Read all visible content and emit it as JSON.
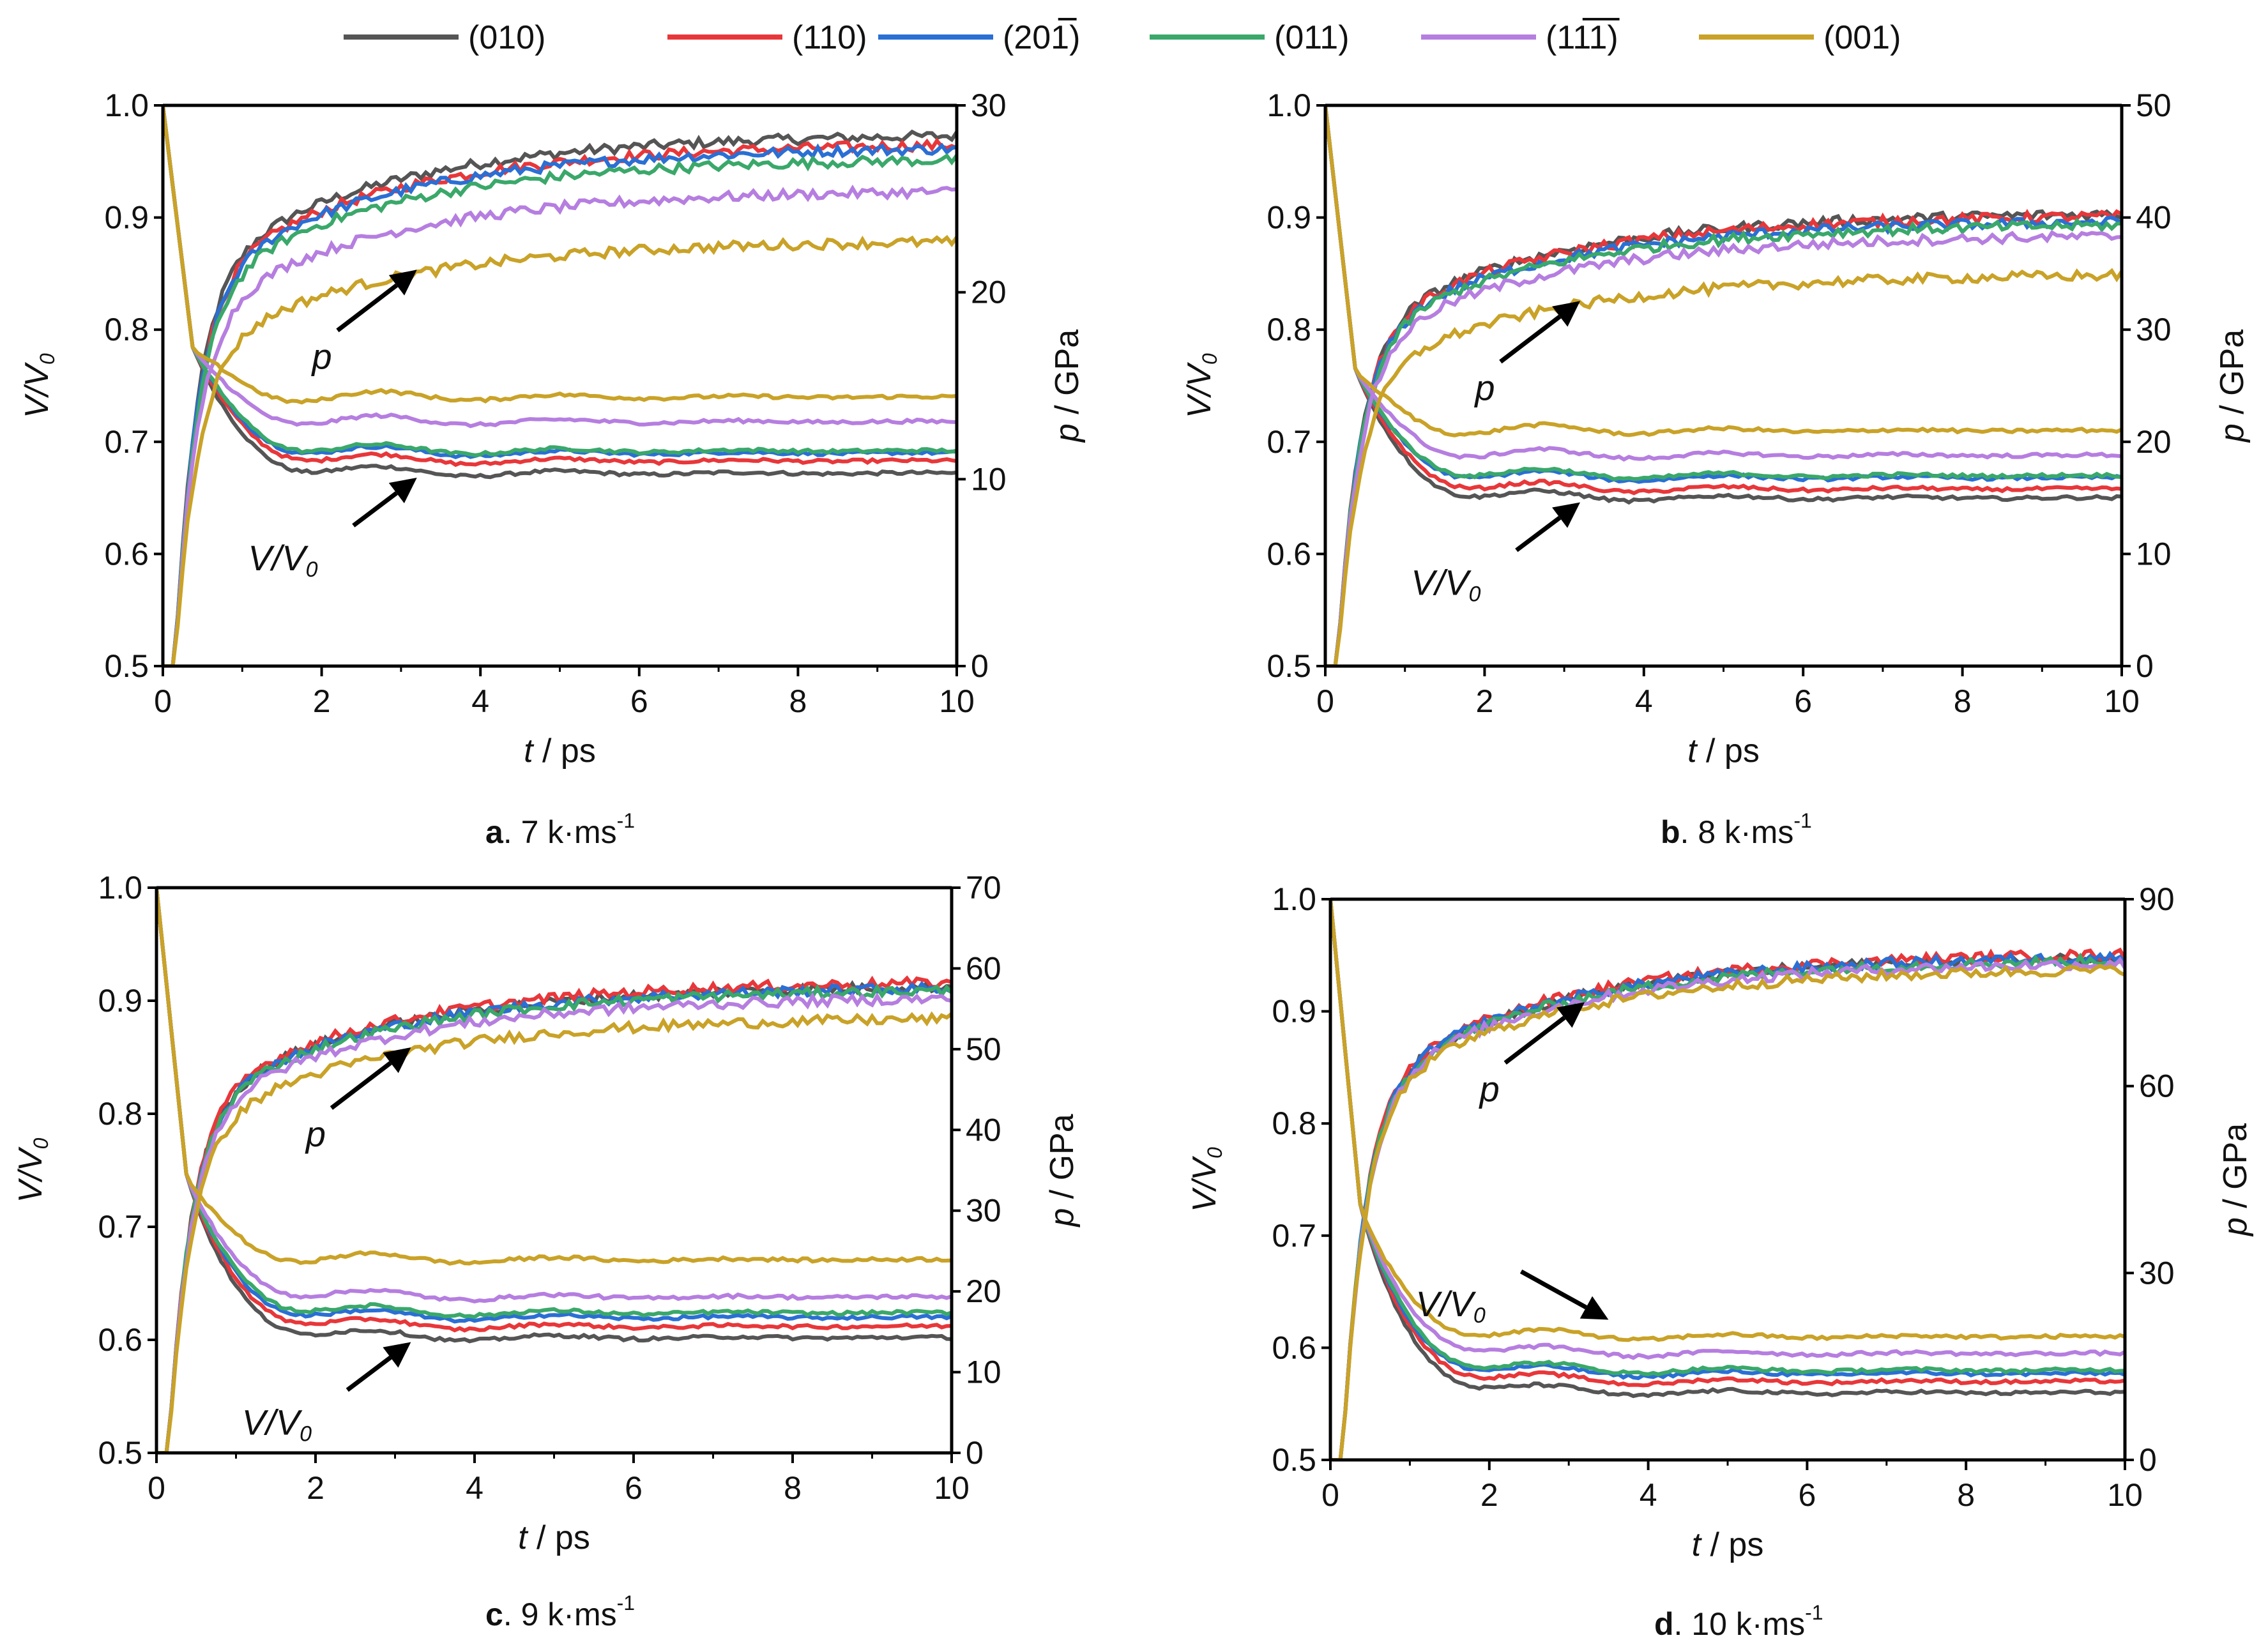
{
  "legend": {
    "position": "top",
    "items": [
      {
        "label": "(010)",
        "color": "#555555"
      },
      {
        "label": "(110)",
        "color": "#e8373a"
      },
      {
        "label": "(201)",
        "overline": "1",
        "color": "#2a6fd4"
      },
      {
        "label": "(011)",
        "color": "#3aa86a"
      },
      {
        "label": "(111)",
        "overline": "11",
        "color": "#b67ee0"
      },
      {
        "label": "(001)",
        "color": "#c9a227"
      }
    ]
  },
  "chart_data": [
    {
      "type": "line",
      "caption": {
        "letter": "a",
        "text": ". 7 k·ms",
        "sup": "-1"
      },
      "xlabel": "t / ps",
      "ylabel_left": "V/V0",
      "ylabel_right": "p / GPa",
      "xlim": [
        0,
        10
      ],
      "ylim_left": [
        0.5,
        1.0
      ],
      "ylim_right": [
        0,
        30
      ],
      "x_ticks": [
        0,
        2,
        4,
        6,
        8,
        10
      ],
      "y_ticks_left": [
        "0.5",
        "0.6",
        "0.7",
        "0.8",
        "0.9",
        "1.0"
      ],
      "y_ticks_right": [
        "0",
        "10",
        "20",
        "30"
      ],
      "p_final": [
        28.5,
        28.0,
        27.8,
        27.2,
        25.5,
        22.8
      ],
      "v_final": [
        0.672,
        0.683,
        0.69,
        0.692,
        0.718,
        0.74
      ],
      "annotations": [
        {
          "label": "p"
        },
        {
          "label": "V/V0"
        }
      ]
    },
    {
      "type": "line",
      "caption": {
        "letter": "b",
        "text": ". 8 k·ms",
        "sup": "-1"
      },
      "xlabel": "t / ps",
      "ylabel_left": "V/V0",
      "ylabel_right": "p / GPa",
      "xlim": [
        0,
        10
      ],
      "ylim_left": [
        0.5,
        1.0
      ],
      "ylim_right": [
        0,
        50
      ],
      "x_ticks": [
        0,
        2,
        4,
        6,
        8,
        10
      ],
      "y_ticks_left": [
        "0.5",
        "0.6",
        "0.7",
        "0.8",
        "0.9",
        "1.0"
      ],
      "y_ticks_right": [
        "0",
        "10",
        "20",
        "30",
        "40",
        "50"
      ],
      "p_final": [
        40.5,
        40.3,
        39.8,
        39.5,
        38.5,
        35.0
      ],
      "v_final": [
        0.65,
        0.658,
        0.668,
        0.67,
        0.688,
        0.71
      ],
      "annotations": [
        {
          "label": "p"
        },
        {
          "label": "V/V0"
        }
      ]
    },
    {
      "type": "line",
      "caption": {
        "letter": "c",
        "text": ". 9 k·ms",
        "sup": "-1"
      },
      "xlabel": "t / ps",
      "ylabel_left": "V/V0",
      "ylabel_right": "p / GPa",
      "xlim": [
        0,
        10
      ],
      "ylim_left": [
        0.5,
        1.0
      ],
      "ylim_right": [
        0,
        70
      ],
      "x_ticks": [
        0,
        2,
        4,
        6,
        8,
        10
      ],
      "y_ticks_left": [
        "0.5",
        "0.6",
        "0.7",
        "0.8",
        "0.9",
        "1.0"
      ],
      "y_ticks_right": [
        "0",
        "10",
        "20",
        "30",
        "40",
        "50",
        "60",
        "70"
      ],
      "p_final": [
        58.0,
        58.5,
        57.8,
        57.5,
        56.5,
        54.0
      ],
      "v_final": [
        0.602,
        0.612,
        0.62,
        0.624,
        0.638,
        0.671
      ],
      "annotations": [
        {
          "label": "p"
        },
        {
          "label": "V/V0"
        }
      ]
    },
    {
      "type": "line",
      "caption": {
        "letter": "d",
        "text": ". 10 k·ms",
        "sup": "-1"
      },
      "xlabel": "t / ps",
      "ylabel_left": "V/V0",
      "ylabel_right": "p / GPa",
      "xlim": [
        0,
        10
      ],
      "ylim_left": [
        0.5,
        1.0
      ],
      "ylim_right": [
        0,
        90
      ],
      "x_ticks": [
        0,
        2,
        4,
        6,
        8,
        10
      ],
      "y_ticks_left": [
        "0.5",
        "0.6",
        "0.7",
        "0.8",
        "0.9",
        "1.0"
      ],
      "y_ticks_right": [
        "0",
        "30",
        "60",
        "90"
      ],
      "p_final": [
        81.0,
        81.5,
        81.0,
        80.5,
        80.0,
        79.0
      ],
      "v_final": [
        0.56,
        0.57,
        0.577,
        0.58,
        0.595,
        0.61
      ],
      "annotations": [
        {
          "label": "p"
        },
        {
          "label": "V/V0"
        }
      ]
    }
  ]
}
